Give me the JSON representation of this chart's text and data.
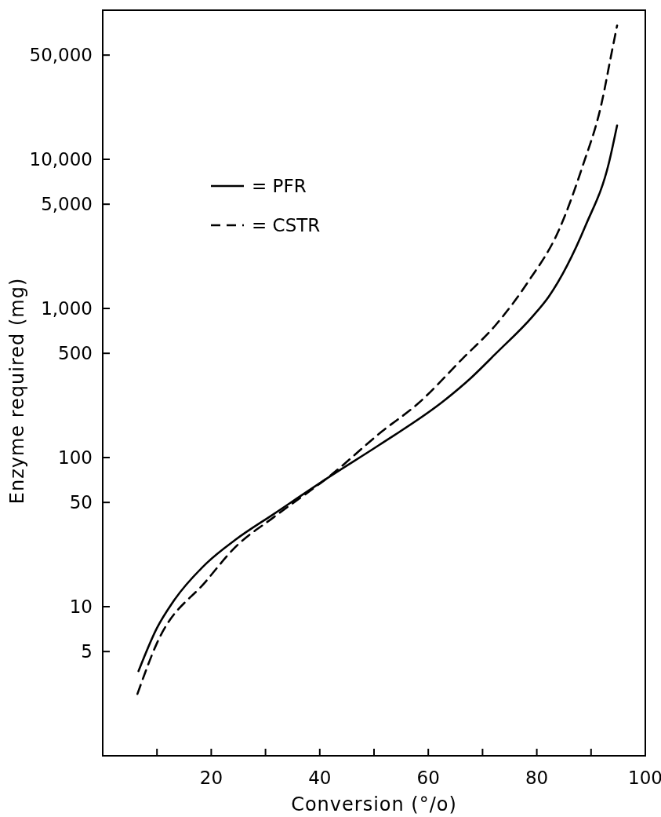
{
  "chart_data": {
    "type": "line",
    "xlabel": "Conversion (°/o)",
    "ylabel": "Enzyme required (mg)",
    "log": "y",
    "xlim": [
      0,
      100
    ],
    "ylim": [
      1,
      100000
    ],
    "xticks": [
      {
        "value": 10,
        "label": null
      },
      20,
      {
        "value": 30,
        "label": null
      },
      40,
      {
        "value": 50,
        "label": null
      },
      60,
      {
        "value": 70,
        "label": null
      },
      80,
      {
        "value": 90,
        "label": null
      },
      100
    ],
    "yticks": [
      5,
      10,
      50,
      100,
      500,
      {
        "value": 1000,
        "label": "1,000"
      },
      {
        "value": 5000,
        "label": "5,000"
      },
      {
        "value": 10000,
        "label": "10,000"
      },
      {
        "value": 50000,
        "label": "50,000"
      }
    ],
    "grid": false,
    "legend": "top left",
    "marker": "none",
    "series": [
      {
        "name": "= PFR",
        "color": "#000000",
        "line_style": "solid",
        "x": [
          6.6,
          10,
          12.9,
          19.1,
          24.4,
          31.6,
          42.2,
          50.9,
          63,
          67.8,
          72.5,
          79.3,
          82.2,
          89,
          93.3,
          94.8
        ],
        "values": [
          3.7,
          7.2,
          10.7,
          19.5,
          28,
          42,
          76,
          121,
          242,
          340,
          500,
          890,
          1200,
          3600,
          9500,
          16900
        ]
      },
      {
        "name": "= CSTR",
        "color": "#000000",
        "line_style": "dashed",
        "x": [
          6.4,
          10,
          19.1,
          24.4,
          31.6,
          42.2,
          51.4,
          58.1,
          66.3,
          72.5,
          78.3,
          84.1,
          88.4,
          91.9,
          93.8,
          94.8
        ],
        "values": [
          2.6,
          5.7,
          14.9,
          25,
          40,
          77,
          149,
          230,
          460,
          780,
          1490,
          3370,
          8900,
          23400,
          52000,
          79000
        ]
      }
    ]
  }
}
